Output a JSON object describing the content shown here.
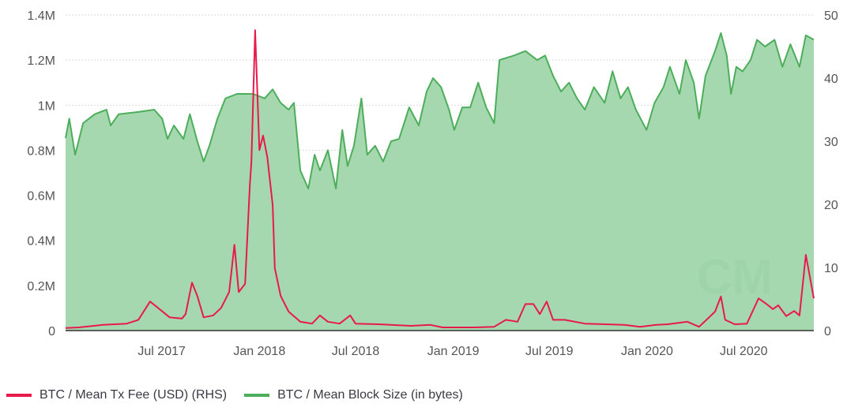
{
  "chart_data": {
    "type": "area+line",
    "title": "",
    "xlabel": "",
    "ylabel_left": "",
    "ylabel_right": "",
    "x_range": [
      "2017-01-01",
      "2020-11-10"
    ],
    "x_ticks": [
      {
        "date": "2017-07-01",
        "label": "Jul 2017"
      },
      {
        "date": "2018-01-01",
        "label": "Jan 2018"
      },
      {
        "date": "2018-07-01",
        "label": "Jul 2018"
      },
      {
        "date": "2019-01-01",
        "label": "Jan 2019"
      },
      {
        "date": "2019-07-01",
        "label": "Jul 2019"
      },
      {
        "date": "2020-01-01",
        "label": "Jan 2020"
      },
      {
        "date": "2020-07-01",
        "label": "Jul 2020"
      }
    ],
    "y_left": {
      "range": [
        0,
        1400000
      ],
      "ticks": [
        {
          "value": 0,
          "label": "0"
        },
        {
          "value": 200000,
          "label": "0.2M"
        },
        {
          "value": 400000,
          "label": "0.4M"
        },
        {
          "value": 600000,
          "label": "0.6M"
        },
        {
          "value": 800000,
          "label": "0.8M"
        },
        {
          "value": 1000000,
          "label": "1M"
        },
        {
          "value": 1200000,
          "label": "1.2M"
        },
        {
          "value": 1400000,
          "label": "1.4M"
        }
      ]
    },
    "y_right": {
      "range": [
        0,
        50
      ],
      "ticks": [
        {
          "value": 0,
          "label": "0"
        },
        {
          "value": 10,
          "label": "10"
        },
        {
          "value": 20,
          "label": "20"
        },
        {
          "value": 30,
          "label": "30"
        },
        {
          "value": 40,
          "label": "40"
        },
        {
          "value": 50,
          "label": "50"
        }
      ]
    },
    "grid": true,
    "legend_position": "bottom-left",
    "series": [
      {
        "name": "BTC / Mean Block Size (in bytes)",
        "axis": "left",
        "kind": "area",
        "color": "#4cae5b",
        "fill": "#a6d8b0",
        "points": [
          [
            "2017-01-01",
            854000
          ],
          [
            "2017-01-08",
            940000
          ],
          [
            "2017-01-19",
            780000
          ],
          [
            "2017-02-03",
            920000
          ],
          [
            "2017-02-25",
            960000
          ],
          [
            "2017-03-19",
            980000
          ],
          [
            "2017-03-27",
            910000
          ],
          [
            "2017-04-11",
            960000
          ],
          [
            "2017-05-18",
            970000
          ],
          [
            "2017-06-17",
            980000
          ],
          [
            "2017-07-02",
            940000
          ],
          [
            "2017-07-12",
            850000
          ],
          [
            "2017-07-24",
            910000
          ],
          [
            "2017-08-11",
            850000
          ],
          [
            "2017-08-23",
            960000
          ],
          [
            "2017-09-06",
            840000
          ],
          [
            "2017-09-18",
            750000
          ],
          [
            "2017-09-29",
            820000
          ],
          [
            "2017-10-14",
            940000
          ],
          [
            "2017-10-29",
            1030000
          ],
          [
            "2017-11-20",
            1050000
          ],
          [
            "2017-12-20",
            1050000
          ],
          [
            "2018-01-11",
            1030000
          ],
          [
            "2018-01-26",
            1070000
          ],
          [
            "2018-02-10",
            1010000
          ],
          [
            "2018-02-25",
            980000
          ],
          [
            "2018-03-07",
            1010000
          ],
          [
            "2018-03-19",
            710000
          ],
          [
            "2018-04-03",
            630000
          ],
          [
            "2018-04-15",
            780000
          ],
          [
            "2018-04-25",
            710000
          ],
          [
            "2018-05-10",
            800000
          ],
          [
            "2018-05-25",
            630000
          ],
          [
            "2018-06-06",
            890000
          ],
          [
            "2018-06-16",
            730000
          ],
          [
            "2018-06-28",
            820000
          ],
          [
            "2018-07-12",
            1030000
          ],
          [
            "2018-07-23",
            780000
          ],
          [
            "2018-08-07",
            820000
          ],
          [
            "2018-08-22",
            750000
          ],
          [
            "2018-09-06",
            840000
          ],
          [
            "2018-09-21",
            850000
          ],
          [
            "2018-10-10",
            990000
          ],
          [
            "2018-10-28",
            910000
          ],
          [
            "2018-11-12",
            1060000
          ],
          [
            "2018-11-24",
            1120000
          ],
          [
            "2018-12-09",
            1080000
          ],
          [
            "2018-12-24",
            980000
          ],
          [
            "2019-01-03",
            890000
          ],
          [
            "2019-01-18",
            990000
          ],
          [
            "2019-02-02",
            990000
          ],
          [
            "2019-02-17",
            1100000
          ],
          [
            "2019-03-04",
            990000
          ],
          [
            "2019-03-19",
            920000
          ],
          [
            "2019-03-29",
            1200000
          ],
          [
            "2019-04-25",
            1220000
          ],
          [
            "2019-05-17",
            1240000
          ],
          [
            "2019-06-08",
            1200000
          ],
          [
            "2019-06-23",
            1220000
          ],
          [
            "2019-07-08",
            1130000
          ],
          [
            "2019-07-23",
            1060000
          ],
          [
            "2019-08-07",
            1100000
          ],
          [
            "2019-08-22",
            1030000
          ],
          [
            "2019-09-06",
            980000
          ],
          [
            "2019-09-23",
            1080000
          ],
          [
            "2019-10-13",
            1010000
          ],
          [
            "2019-10-28",
            1150000
          ],
          [
            "2019-11-12",
            1030000
          ],
          [
            "2019-11-26",
            1080000
          ],
          [
            "2019-12-11",
            980000
          ],
          [
            "2019-12-31",
            890000
          ],
          [
            "2020-01-15",
            1010000
          ],
          [
            "2020-02-01",
            1080000
          ],
          [
            "2020-02-13",
            1170000
          ],
          [
            "2020-03-02",
            1050000
          ],
          [
            "2020-03-14",
            1200000
          ],
          [
            "2020-03-29",
            1100000
          ],
          [
            "2020-04-08",
            940000
          ],
          [
            "2020-04-20",
            1130000
          ],
          [
            "2020-05-08",
            1240000
          ],
          [
            "2020-05-19",
            1320000
          ],
          [
            "2020-05-30",
            1220000
          ],
          [
            "2020-06-07",
            1050000
          ],
          [
            "2020-06-17",
            1170000
          ],
          [
            "2020-06-29",
            1150000
          ],
          [
            "2020-07-14",
            1200000
          ],
          [
            "2020-07-26",
            1290000
          ],
          [
            "2020-08-10",
            1260000
          ],
          [
            "2020-08-28",
            1290000
          ],
          [
            "2020-09-12",
            1170000
          ],
          [
            "2020-09-27",
            1270000
          ],
          [
            "2020-10-14",
            1170000
          ],
          [
            "2020-10-26",
            1310000
          ],
          [
            "2020-11-10",
            1290000
          ]
        ]
      },
      {
        "name": "BTC / Mean Tx Fee (USD) (RHS)",
        "axis": "right",
        "kind": "line",
        "color": "#e8194b",
        "points": [
          [
            "2017-01-01",
            0.4
          ],
          [
            "2017-01-26",
            0.5
          ],
          [
            "2017-03-12",
            0.9
          ],
          [
            "2017-04-26",
            1.1
          ],
          [
            "2017-05-18",
            1.7
          ],
          [
            "2017-06-09",
            4.6
          ],
          [
            "2017-06-24",
            3.6
          ],
          [
            "2017-07-16",
            2.1
          ],
          [
            "2017-08-08",
            1.9
          ],
          [
            "2017-08-15",
            2.6
          ],
          [
            "2017-08-27",
            7.6
          ],
          [
            "2017-09-06",
            5.5
          ],
          [
            "2017-09-18",
            2.1
          ],
          [
            "2017-10-06",
            2.4
          ],
          [
            "2017-10-21",
            3.6
          ],
          [
            "2017-11-05",
            6.1
          ],
          [
            "2017-11-15",
            13.6
          ],
          [
            "2017-11-23",
            6.1
          ],
          [
            "2017-12-05",
            7.4
          ],
          [
            "2017-12-14",
            23.0
          ],
          [
            "2017-12-17",
            26.8
          ],
          [
            "2017-12-24",
            47.6
          ],
          [
            "2018-01-01",
            28.6
          ],
          [
            "2018-01-08",
            30.9
          ],
          [
            "2018-01-16",
            27.4
          ],
          [
            "2018-01-26",
            19.9
          ],
          [
            "2018-01-30",
            9.9
          ],
          [
            "2018-02-10",
            5.5
          ],
          [
            "2018-02-25",
            3.0
          ],
          [
            "2018-03-19",
            1.4
          ],
          [
            "2018-04-10",
            1.1
          ],
          [
            "2018-04-25",
            2.4
          ],
          [
            "2018-05-10",
            1.4
          ],
          [
            "2018-06-01",
            1.1
          ],
          [
            "2018-06-21",
            2.4
          ],
          [
            "2018-07-01",
            1.1
          ],
          [
            "2018-08-15",
            1.0
          ],
          [
            "2018-10-13",
            0.75
          ],
          [
            "2018-11-19",
            0.9
          ],
          [
            "2018-12-12",
            0.5
          ],
          [
            "2019-02-09",
            0.5
          ],
          [
            "2019-03-19",
            0.6
          ],
          [
            "2019-04-10",
            1.7
          ],
          [
            "2019-05-02",
            1.4
          ],
          [
            "2019-05-17",
            4.2
          ],
          [
            "2019-06-01",
            4.2
          ],
          [
            "2019-06-13",
            2.6
          ],
          [
            "2019-06-26",
            4.6
          ],
          [
            "2019-07-08",
            1.7
          ],
          [
            "2019-07-30",
            1.7
          ],
          [
            "2019-09-06",
            1.1
          ],
          [
            "2019-11-19",
            0.9
          ],
          [
            "2019-12-19",
            0.6
          ],
          [
            "2020-01-18",
            0.9
          ],
          [
            "2020-02-09",
            1.0
          ],
          [
            "2020-03-17",
            1.4
          ],
          [
            "2020-04-08",
            0.6
          ],
          [
            "2020-05-08",
            3.0
          ],
          [
            "2020-05-19",
            5.4
          ],
          [
            "2020-05-27",
            1.7
          ],
          [
            "2020-06-14",
            1.0
          ],
          [
            "2020-07-07",
            1.1
          ],
          [
            "2020-07-29",
            5.1
          ],
          [
            "2020-08-13",
            4.2
          ],
          [
            "2020-08-25",
            3.4
          ],
          [
            "2020-09-04",
            4.0
          ],
          [
            "2020-09-19",
            2.3
          ],
          [
            "2020-10-04",
            3.1
          ],
          [
            "2020-10-14",
            2.4
          ],
          [
            "2020-10-26",
            12.0
          ],
          [
            "2020-11-10",
            5.1
          ]
        ]
      }
    ],
    "watermark": "CM"
  },
  "legend": [
    {
      "label": "BTC / Mean Tx Fee (USD) (RHS)",
      "color": "#e8194b"
    },
    {
      "label": "BTC / Mean Block Size (in bytes)",
      "color": "#4cae5b"
    }
  ]
}
